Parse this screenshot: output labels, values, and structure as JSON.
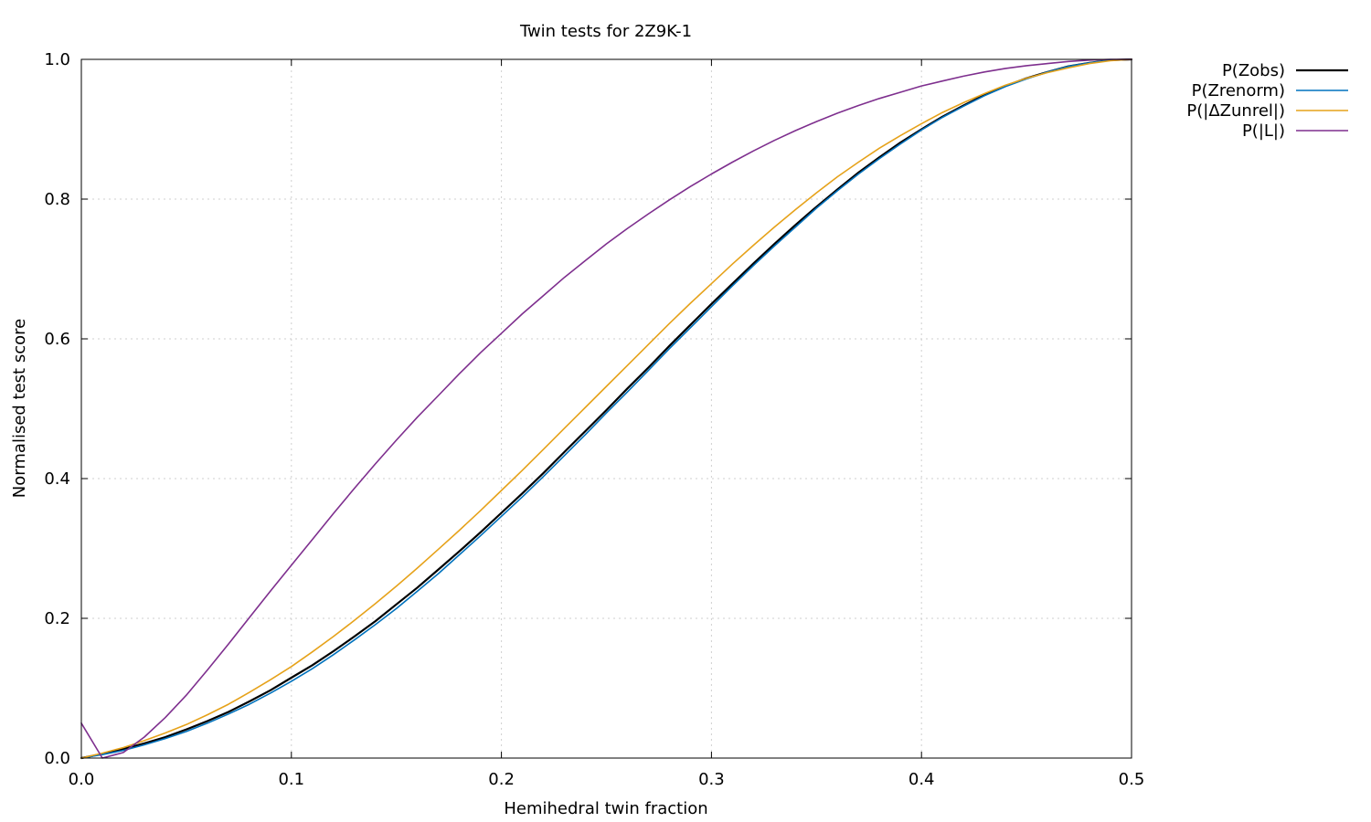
{
  "chart_data": {
    "type": "line",
    "title": "Twin tests for 2Z9K-1",
    "xlabel": "Hemihedral twin fraction",
    "ylabel": "Normalised test score",
    "xlim": [
      0.0,
      0.5
    ],
    "ylim": [
      0.0,
      1.0
    ],
    "x_ticks": [
      "0.0",
      "0.1",
      "0.2",
      "0.3",
      "0.4",
      "0.5"
    ],
    "y_ticks": [
      "0.0",
      "0.2",
      "0.4",
      "0.6",
      "0.8",
      "1.0"
    ],
    "grid": true,
    "legend_position": "outside-top-right",
    "x": [
      0.0,
      0.01,
      0.02,
      0.03,
      0.04,
      0.05,
      0.06,
      0.07,
      0.08,
      0.09,
      0.1,
      0.11,
      0.12,
      0.13,
      0.14,
      0.15,
      0.16,
      0.17,
      0.18,
      0.19,
      0.2,
      0.21,
      0.22,
      0.23,
      0.24,
      0.25,
      0.26,
      0.27,
      0.28,
      0.29,
      0.3,
      0.31,
      0.32,
      0.33,
      0.34,
      0.35,
      0.36,
      0.37,
      0.38,
      0.39,
      0.4,
      0.41,
      0.42,
      0.43,
      0.44,
      0.45,
      0.46,
      0.47,
      0.48,
      0.49,
      0.5
    ],
    "series": [
      {
        "name": "P(Zobs)",
        "color": "#000000",
        "values": [
          0.0,
          0.006,
          0.013,
          0.021,
          0.03,
          0.041,
          0.053,
          0.066,
          0.081,
          0.097,
          0.115,
          0.133,
          0.153,
          0.174,
          0.196,
          0.22,
          0.244,
          0.27,
          0.296,
          0.323,
          0.351,
          0.379,
          0.408,
          0.438,
          0.468,
          0.498,
          0.529,
          0.559,
          0.59,
          0.62,
          0.65,
          0.679,
          0.708,
          0.736,
          0.763,
          0.789,
          0.814,
          0.838,
          0.86,
          0.881,
          0.9,
          0.918,
          0.934,
          0.949,
          0.962,
          0.973,
          0.982,
          0.99,
          0.995,
          0.999,
          1.0
        ]
      },
      {
        "name": "P(Zrenorm)",
        "color": "#0072bd",
        "values": [
          0.0,
          0.005,
          0.011,
          0.019,
          0.028,
          0.038,
          0.05,
          0.063,
          0.077,
          0.093,
          0.11,
          0.128,
          0.148,
          0.169,
          0.191,
          0.214,
          0.239,
          0.264,
          0.291,
          0.318,
          0.346,
          0.374,
          0.403,
          0.433,
          0.463,
          0.494,
          0.524,
          0.555,
          0.586,
          0.616,
          0.646,
          0.676,
          0.705,
          0.733,
          0.76,
          0.787,
          0.812,
          0.836,
          0.858,
          0.879,
          0.899,
          0.917,
          0.933,
          0.948,
          0.961,
          0.972,
          0.982,
          0.99,
          0.995,
          0.999,
          1.0
        ]
      },
      {
        "name": "P(|ΔZunrel|)",
        "color": "#e6a21a",
        "values": [
          0.0,
          0.007,
          0.015,
          0.025,
          0.036,
          0.048,
          0.062,
          0.077,
          0.094,
          0.112,
          0.131,
          0.152,
          0.174,
          0.197,
          0.221,
          0.246,
          0.272,
          0.299,
          0.326,
          0.354,
          0.383,
          0.412,
          0.442,
          0.472,
          0.502,
          0.532,
          0.562,
          0.592,
          0.622,
          0.651,
          0.679,
          0.707,
          0.734,
          0.76,
          0.785,
          0.809,
          0.832,
          0.853,
          0.873,
          0.891,
          0.908,
          0.924,
          0.938,
          0.951,
          0.963,
          0.973,
          0.981,
          0.988,
          0.994,
          0.998,
          1.0
        ]
      },
      {
        "name": "P(|L|)",
        "color": "#7e2f8e",
        "values": [
          0.05,
          0.0,
          0.008,
          0.03,
          0.058,
          0.09,
          0.126,
          0.163,
          0.201,
          0.239,
          0.276,
          0.313,
          0.35,
          0.386,
          0.421,
          0.455,
          0.488,
          0.519,
          0.55,
          0.58,
          0.608,
          0.636,
          0.662,
          0.688,
          0.712,
          0.736,
          0.758,
          0.779,
          0.799,
          0.818,
          0.836,
          0.853,
          0.869,
          0.884,
          0.898,
          0.911,
          0.923,
          0.934,
          0.944,
          0.953,
          0.962,
          0.969,
          0.976,
          0.982,
          0.987,
          0.991,
          0.994,
          0.997,
          0.999,
          1.0,
          1.0
        ]
      }
    ]
  }
}
